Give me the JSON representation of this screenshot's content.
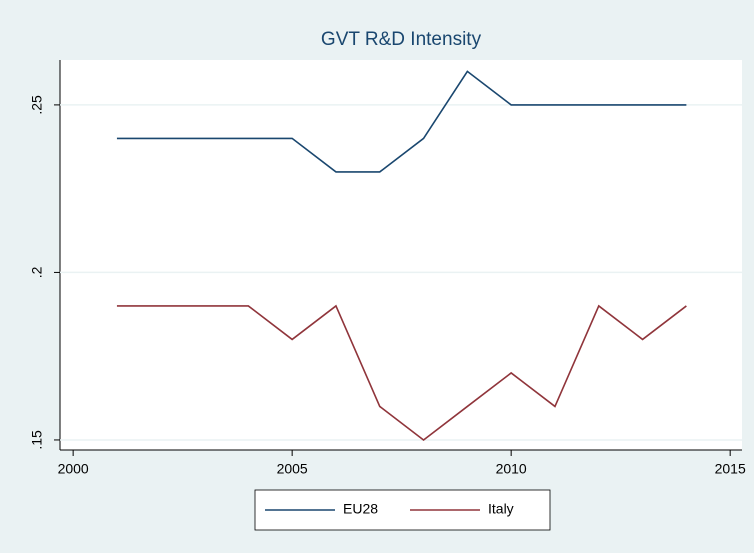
{
  "chart_data": {
    "type": "line",
    "title": "GVT R&D Intensity",
    "x": [
      2001,
      2002,
      2003,
      2004,
      2005,
      2006,
      2007,
      2008,
      2009,
      2010,
      2011,
      2012,
      2013,
      2014
    ],
    "series": [
      {
        "name": "EU28",
        "color": "#1a476f",
        "values": [
          0.24,
          0.24,
          0.24,
          0.24,
          0.24,
          0.23,
          0.23,
          0.24,
          0.26,
          0.25,
          0.25,
          0.25,
          0.25,
          0.25
        ]
      },
      {
        "name": "Italy",
        "color": "#90353b",
        "values": [
          0.19,
          0.19,
          0.19,
          0.19,
          0.18,
          0.19,
          0.16,
          0.15,
          0.16,
          0.17,
          0.16,
          0.19,
          0.18,
          0.19
        ]
      }
    ],
    "xlim": [
      1999.7,
      2015.27
    ],
    "xticks": [
      2000,
      2005,
      2010,
      2015
    ],
    "ylim": [
      0.147,
      0.2634
    ],
    "yticks": [
      {
        "value": 0.15,
        "label": ".15"
      },
      {
        "value": 0.2,
        "label": ".2"
      },
      {
        "value": 0.25,
        "label": ".25"
      }
    ],
    "grid": true,
    "legend": "bottom"
  }
}
